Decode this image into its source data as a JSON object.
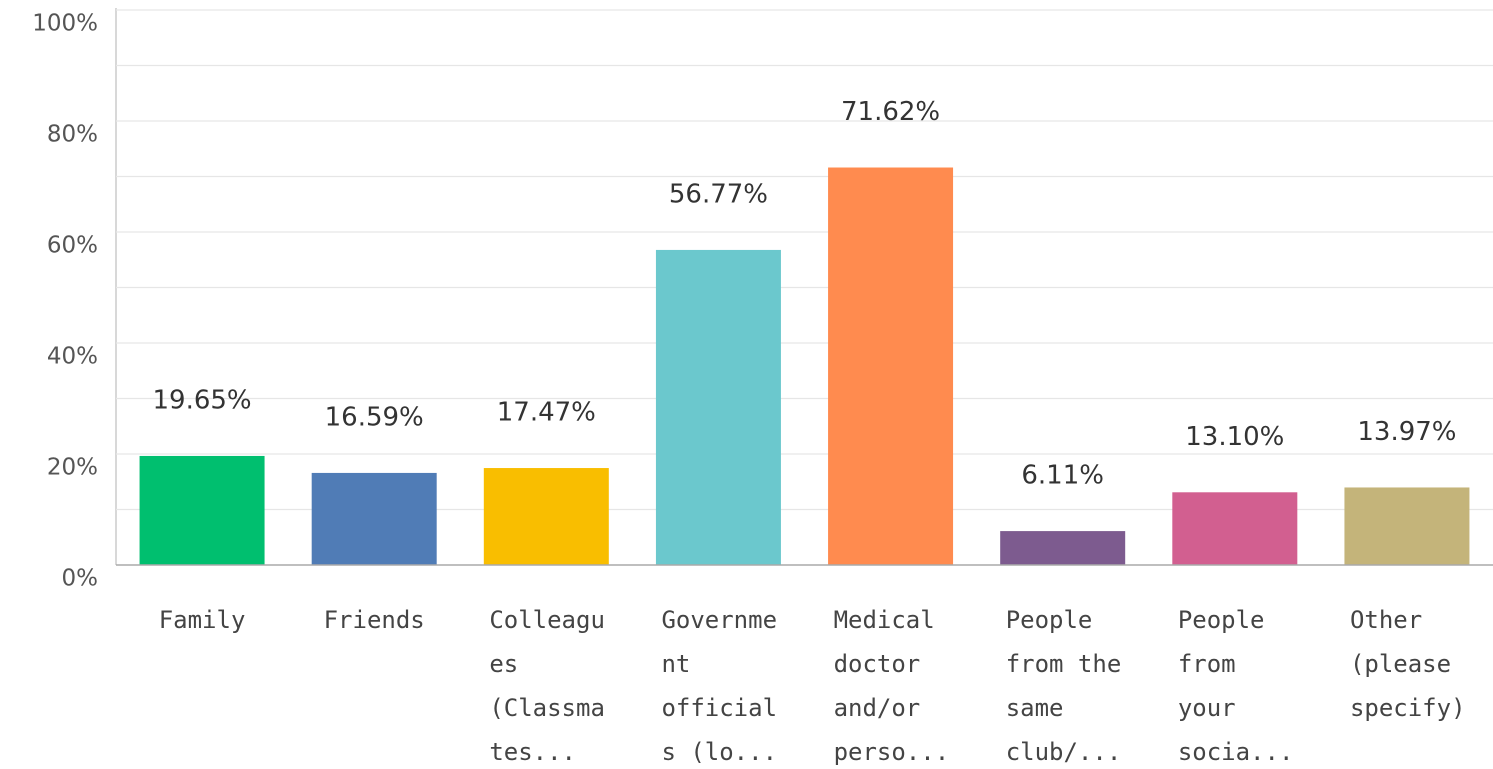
{
  "chart_data": {
    "type": "bar",
    "categories": [
      [
        "Family"
      ],
      [
        "Friends"
      ],
      [
        "Colleagu",
        "es",
        "(Classma",
        "tes..."
      ],
      [
        "Governme",
        "nt",
        "official",
        "s (lo..."
      ],
      [
        "Medical",
        "doctor",
        "and/or",
        "perso..."
      ],
      [
        "People",
        "from the",
        "same",
        "club/..."
      ],
      [
        "People",
        "from",
        "your",
        "socia..."
      ],
      [
        "Other",
        "(please",
        "specify)"
      ]
    ],
    "values": [
      19.65,
      16.59,
      17.47,
      56.77,
      71.62,
      6.11,
      13.1,
      13.97
    ],
    "value_labels": [
      "19.65%",
      "16.59%",
      "17.47%",
      "56.77%",
      "71.62%",
      "6.11%",
      "13.10%",
      "13.97%"
    ],
    "colors": [
      "#00bf6f",
      "#507cb6",
      "#f9be00",
      "#6bc8cd",
      "#ff8b4f",
      "#7d5b8f",
      "#d25f90",
      "#c4b47a"
    ],
    "ylim": [
      0,
      100
    ],
    "yticks": [
      {
        "value": 0,
        "label": "0%"
      },
      {
        "value": 20,
        "label": "20%"
      },
      {
        "value": 40,
        "label": "40%"
      },
      {
        "value": 60,
        "label": "60%"
      },
      {
        "value": 80,
        "label": "80%"
      },
      {
        "value": 100,
        "label": "100%"
      }
    ],
    "yminor": [
      10,
      30,
      50,
      70,
      90
    ],
    "grid": true
  }
}
